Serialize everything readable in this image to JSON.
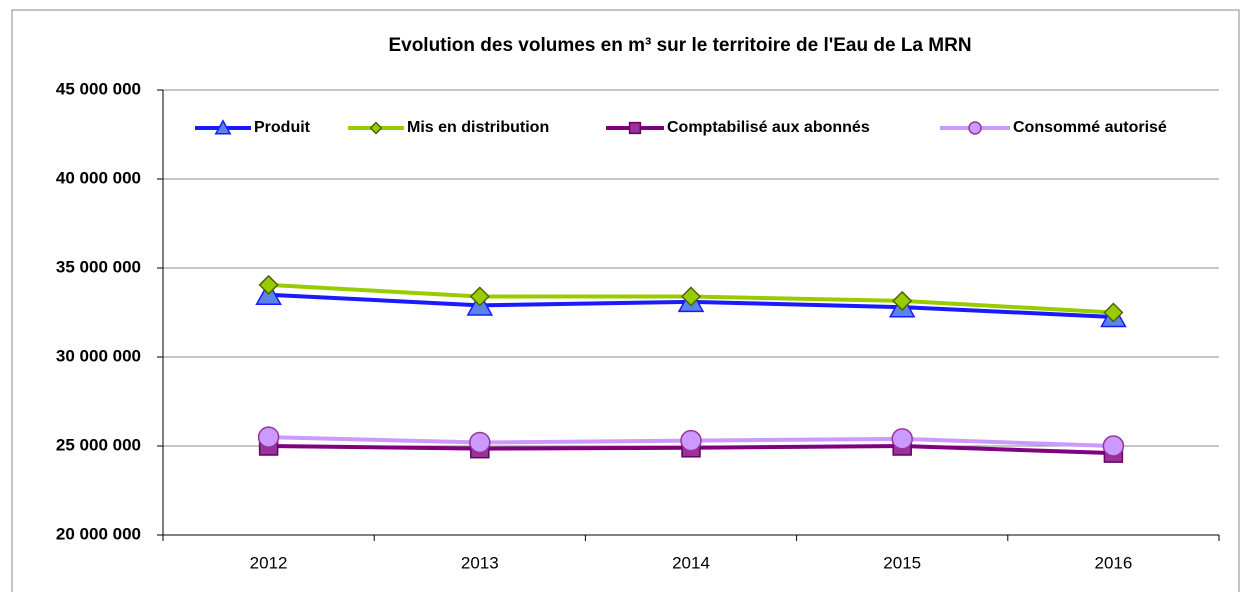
{
  "chart_data": {
    "type": "line",
    "title": "Evolution des volumes en m³ sur le territoire de l'Eau de La MRN",
    "categories": [
      "2012",
      "2013",
      "2014",
      "2015",
      "2016"
    ],
    "series": [
      {
        "name": "Produit",
        "color": "#1a1aff",
        "marker_color": "#5b84e8",
        "marker": "triangle",
        "values": [
          33500000,
          32900000,
          33100000,
          32800000,
          32250000
        ]
      },
      {
        "name": "Mis en distribution",
        "color": "#99cc00",
        "marker_color": "#99cc00",
        "marker": "diamond",
        "values": [
          34050000,
          33400000,
          33400000,
          33150000,
          32500000
        ]
      },
      {
        "name": "Comptabilisé aux abonnés",
        "color": "#800080",
        "marker_color": "#993399",
        "marker": "square",
        "values": [
          25000000,
          24850000,
          24900000,
          25000000,
          24600000
        ]
      },
      {
        "name": "Consommé autorisé",
        "color": "#cc99ff",
        "marker_color": "#cc99ff",
        "marker": "circle",
        "values": [
          25500000,
          25200000,
          25300000,
          25400000,
          25000000
        ]
      }
    ],
    "ylim": [
      20000000,
      45000000
    ],
    "yticks": [
      {
        "value": 20000000,
        "label": "20 000 000"
      },
      {
        "value": 25000000,
        "label": "25 000 000"
      },
      {
        "value": 30000000,
        "label": "30 000 000"
      },
      {
        "value": 35000000,
        "label": "35 000 000"
      },
      {
        "value": 40000000,
        "label": "40 000 000"
      },
      {
        "value": 45000000,
        "label": "45 000 000"
      }
    ],
    "grid": true,
    "legend": "top"
  }
}
